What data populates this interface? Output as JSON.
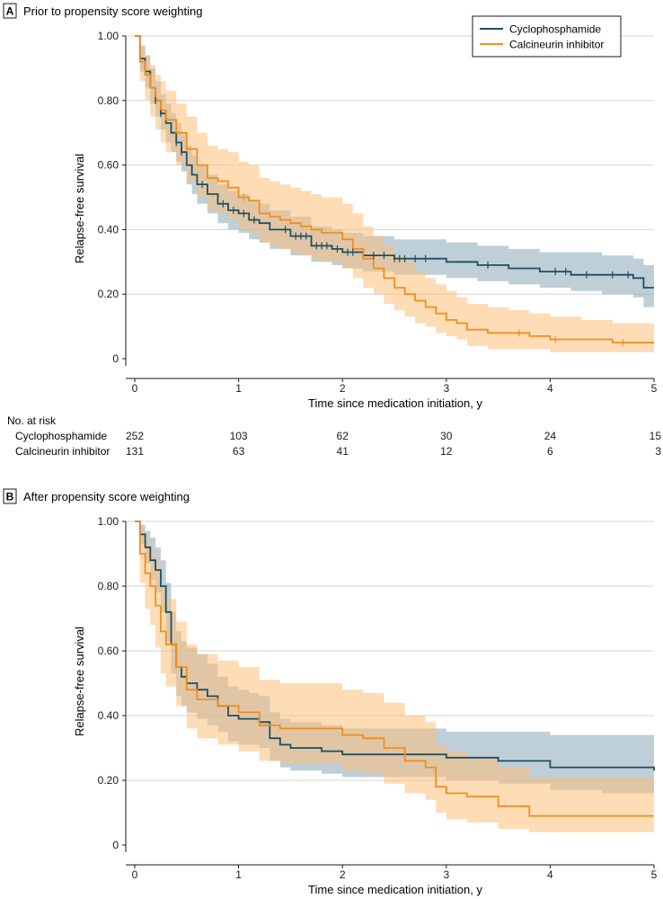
{
  "colors": {
    "cyclophosphamide": "#1f4e63",
    "calcineurin": "#f28e1c",
    "cyclo_band": "#8aa8b8",
    "calci_band": "#fbbf7a",
    "grid": "#d6d6d6",
    "text": "#1a1a1a"
  },
  "legend": {
    "cyclophosphamide": "Cyclophosphamide",
    "calcineurin": "Calcineurin inhibitor"
  },
  "risk_table": {
    "header": "No. at risk",
    "rows": [
      {
        "label": "Cyclophosphamide",
        "counts": [
          "252",
          "103",
          "62",
          "30",
          "24",
          "15"
        ]
      },
      {
        "label": "Calcineurin inhibitor",
        "counts": [
          "131",
          "63",
          "41",
          "12",
          "6",
          "3"
        ]
      }
    ]
  },
  "chart_data": [
    {
      "type": "line",
      "panel_letter": "A",
      "title": "Prior to propensity score weighting",
      "xlabel": "Time since medication initiation, y",
      "ylabel": "Relapse-free survival",
      "xlim": [
        0,
        5
      ],
      "ylim": [
        0,
        1
      ],
      "xticks": [
        "0",
        "1",
        "2",
        "3",
        "4",
        "5"
      ],
      "yticks": [
        "0",
        "0.20",
        "0.40",
        "0.60",
        "0.80",
        "1.00"
      ],
      "legend_position": "top-right",
      "series": [
        {
          "name": "Cyclophosphamide",
          "x": [
            0,
            0.05,
            0.1,
            0.15,
            0.2,
            0.25,
            0.3,
            0.35,
            0.4,
            0.45,
            0.5,
            0.55,
            0.6,
            0.7,
            0.8,
            0.9,
            1.0,
            1.1,
            1.2,
            1.3,
            1.5,
            1.7,
            1.9,
            2.0,
            2.2,
            2.5,
            2.8,
            3.0,
            3.3,
            3.6,
            3.9,
            4.2,
            4.5,
            4.8,
            4.9,
            5.0
          ],
          "y": [
            1.0,
            0.93,
            0.89,
            0.84,
            0.8,
            0.76,
            0.73,
            0.7,
            0.67,
            0.64,
            0.6,
            0.57,
            0.54,
            0.51,
            0.48,
            0.46,
            0.45,
            0.43,
            0.42,
            0.4,
            0.38,
            0.35,
            0.34,
            0.33,
            0.32,
            0.31,
            0.31,
            0.3,
            0.29,
            0.28,
            0.27,
            0.26,
            0.26,
            0.25,
            0.22,
            0.22
          ],
          "ci_lower": [
            1.0,
            0.89,
            0.84,
            0.79,
            0.75,
            0.71,
            0.67,
            0.64,
            0.61,
            0.58,
            0.54,
            0.51,
            0.48,
            0.45,
            0.42,
            0.4,
            0.39,
            0.37,
            0.36,
            0.34,
            0.32,
            0.3,
            0.29,
            0.28,
            0.27,
            0.26,
            0.26,
            0.25,
            0.24,
            0.23,
            0.22,
            0.21,
            0.2,
            0.19,
            0.16,
            0.16
          ],
          "ci_upper": [
            1.0,
            0.97,
            0.94,
            0.9,
            0.86,
            0.82,
            0.79,
            0.76,
            0.73,
            0.7,
            0.66,
            0.63,
            0.6,
            0.57,
            0.54,
            0.52,
            0.51,
            0.49,
            0.48,
            0.46,
            0.44,
            0.41,
            0.4,
            0.39,
            0.38,
            0.37,
            0.37,
            0.36,
            0.35,
            0.34,
            0.33,
            0.33,
            0.32,
            0.31,
            0.29,
            0.29
          ],
          "censor_x": [
            0.2,
            0.25,
            0.4,
            0.45,
            0.65,
            0.85,
            0.95,
            1.05,
            1.15,
            1.45,
            1.55,
            1.6,
            1.65,
            1.75,
            1.8,
            1.85,
            1.95,
            2.05,
            2.1,
            2.3,
            2.4,
            2.5,
            2.55,
            2.6,
            2.7,
            2.8,
            3.4,
            4.05,
            4.15,
            4.35,
            4.6,
            4.75
          ]
        },
        {
          "name": "Calcineurin inhibitor",
          "x": [
            0,
            0.05,
            0.1,
            0.15,
            0.2,
            0.25,
            0.3,
            0.4,
            0.5,
            0.6,
            0.7,
            0.8,
            0.9,
            1.0,
            1.1,
            1.2,
            1.3,
            1.4,
            1.5,
            1.6,
            1.7,
            1.8,
            2.0,
            2.1,
            2.2,
            2.3,
            2.4,
            2.5,
            2.6,
            2.7,
            2.8,
            2.9,
            3.0,
            3.1,
            3.2,
            3.4,
            3.6,
            3.8,
            4.0,
            4.3,
            4.6,
            5.0
          ],
          "y": [
            1.0,
            0.92,
            0.88,
            0.84,
            0.8,
            0.77,
            0.74,
            0.7,
            0.65,
            0.6,
            0.56,
            0.55,
            0.53,
            0.5,
            0.49,
            0.45,
            0.44,
            0.43,
            0.42,
            0.41,
            0.4,
            0.39,
            0.37,
            0.34,
            0.31,
            0.28,
            0.25,
            0.22,
            0.2,
            0.18,
            0.16,
            0.14,
            0.12,
            0.11,
            0.09,
            0.08,
            0.08,
            0.07,
            0.06,
            0.06,
            0.05,
            0.05
          ],
          "ci_lower": [
            1.0,
            0.86,
            0.8,
            0.75,
            0.71,
            0.67,
            0.64,
            0.6,
            0.55,
            0.5,
            0.46,
            0.45,
            0.43,
            0.4,
            0.39,
            0.36,
            0.35,
            0.34,
            0.33,
            0.32,
            0.31,
            0.3,
            0.28,
            0.25,
            0.22,
            0.2,
            0.17,
            0.15,
            0.13,
            0.11,
            0.1,
            0.08,
            0.07,
            0.06,
            0.04,
            0.03,
            0.03,
            0.03,
            0.02,
            0.02,
            0.02,
            0.02
          ],
          "ci_upper": [
            1.0,
            0.97,
            0.94,
            0.91,
            0.88,
            0.86,
            0.83,
            0.79,
            0.75,
            0.7,
            0.66,
            0.65,
            0.64,
            0.61,
            0.6,
            0.56,
            0.55,
            0.54,
            0.53,
            0.52,
            0.51,
            0.5,
            0.48,
            0.45,
            0.41,
            0.38,
            0.35,
            0.32,
            0.3,
            0.27,
            0.25,
            0.23,
            0.21,
            0.19,
            0.17,
            0.16,
            0.15,
            0.14,
            0.13,
            0.12,
            0.11,
            0.11
          ],
          "censor_x": [
            1.05,
            3.7,
            4.05,
            4.7
          ]
        }
      ]
    },
    {
      "type": "line",
      "panel_letter": "B",
      "title": "After propensity score weighting",
      "xlabel": "Time since medication initiation, y",
      "ylabel": "Relapse-free survival",
      "xlim": [
        0,
        5
      ],
      "ylim": [
        0,
        1
      ],
      "xticks": [
        "0",
        "1",
        "2",
        "3",
        "4",
        "5"
      ],
      "yticks": [
        "0",
        "0.20",
        "0.40",
        "0.60",
        "0.80",
        "1.00"
      ],
      "series": [
        {
          "name": "Cyclophosphamide",
          "x": [
            0,
            0.05,
            0.1,
            0.15,
            0.2,
            0.25,
            0.3,
            0.35,
            0.4,
            0.45,
            0.5,
            0.6,
            0.7,
            0.8,
            0.9,
            1.0,
            1.1,
            1.2,
            1.3,
            1.4,
            1.5,
            1.6,
            1.8,
            2.0,
            2.5,
            3.0,
            3.5,
            4.0,
            4.5,
            5.0
          ],
          "y": [
            1.0,
            0.96,
            0.92,
            0.88,
            0.85,
            0.8,
            0.72,
            0.62,
            0.55,
            0.52,
            0.5,
            0.48,
            0.46,
            0.43,
            0.4,
            0.39,
            0.39,
            0.38,
            0.33,
            0.31,
            0.3,
            0.3,
            0.29,
            0.28,
            0.28,
            0.27,
            0.26,
            0.24,
            0.24,
            0.23
          ],
          "ci_lower": [
            1.0,
            0.93,
            0.87,
            0.82,
            0.78,
            0.72,
            0.63,
            0.53,
            0.46,
            0.43,
            0.41,
            0.39,
            0.37,
            0.35,
            0.32,
            0.31,
            0.31,
            0.3,
            0.26,
            0.24,
            0.23,
            0.23,
            0.22,
            0.21,
            0.21,
            0.2,
            0.19,
            0.17,
            0.16,
            0.15
          ],
          "ci_upper": [
            1.0,
            0.99,
            0.97,
            0.95,
            0.92,
            0.88,
            0.81,
            0.72,
            0.66,
            0.63,
            0.61,
            0.59,
            0.56,
            0.52,
            0.49,
            0.48,
            0.47,
            0.46,
            0.41,
            0.39,
            0.38,
            0.38,
            0.37,
            0.36,
            0.36,
            0.35,
            0.35,
            0.34,
            0.34,
            0.35
          ]
        },
        {
          "name": "Calcineurin inhibitor",
          "x": [
            0,
            0.05,
            0.1,
            0.15,
            0.2,
            0.25,
            0.3,
            0.4,
            0.5,
            0.6,
            0.8,
            1.0,
            1.2,
            1.4,
            1.6,
            1.8,
            2.0,
            2.2,
            2.4,
            2.6,
            2.8,
            2.9,
            3.0,
            3.2,
            3.5,
            3.8,
            4.0,
            4.5,
            5.0
          ],
          "y": [
            1.0,
            0.9,
            0.84,
            0.8,
            0.74,
            0.66,
            0.62,
            0.55,
            0.48,
            0.45,
            0.43,
            0.41,
            0.37,
            0.36,
            0.36,
            0.36,
            0.34,
            0.33,
            0.3,
            0.26,
            0.24,
            0.18,
            0.16,
            0.15,
            0.12,
            0.09,
            0.09,
            0.09,
            0.09
          ],
          "ci_lower": [
            1.0,
            0.81,
            0.73,
            0.68,
            0.61,
            0.53,
            0.49,
            0.43,
            0.36,
            0.33,
            0.31,
            0.29,
            0.26,
            0.25,
            0.25,
            0.25,
            0.23,
            0.22,
            0.19,
            0.16,
            0.14,
            0.1,
            0.08,
            0.07,
            0.05,
            0.04,
            0.04,
            0.04,
            0.04
          ],
          "ci_upper": [
            1.0,
            0.97,
            0.94,
            0.91,
            0.87,
            0.8,
            0.76,
            0.69,
            0.62,
            0.59,
            0.57,
            0.55,
            0.51,
            0.5,
            0.5,
            0.5,
            0.48,
            0.47,
            0.44,
            0.4,
            0.38,
            0.31,
            0.29,
            0.27,
            0.24,
            0.21,
            0.21,
            0.21,
            0.21
          ]
        }
      ]
    }
  ]
}
